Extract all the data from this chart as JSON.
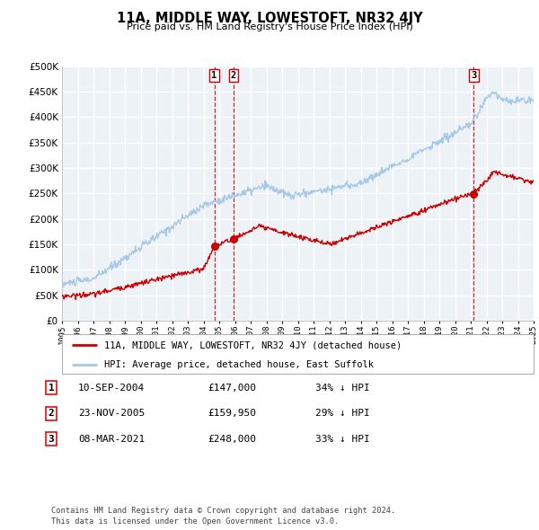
{
  "title": "11A, MIDDLE WAY, LOWESTOFT, NR32 4JY",
  "subtitle": "Price paid vs. HM Land Registry's House Price Index (HPI)",
  "legend_red": "11A, MIDDLE WAY, LOWESTOFT, NR32 4JY (detached house)",
  "legend_blue": "HPI: Average price, detached house, East Suffolk",
  "footer": "Contains HM Land Registry data © Crown copyright and database right 2024.\nThis data is licensed under the Open Government Licence v3.0.",
  "transactions": [
    {
      "num": 1,
      "date": "10-SEP-2004",
      "price": "£147,000",
      "hpi": "34% ↓ HPI",
      "year": 2004.69
    },
    {
      "num": 2,
      "date": "23-NOV-2005",
      "price": "£159,950",
      "hpi": "29% ↓ HPI",
      "year": 2005.9
    },
    {
      "num": 3,
      "date": "08-MAR-2021",
      "price": "£248,000",
      "hpi": "33% ↓ HPI",
      "year": 2021.19
    }
  ],
  "transaction_prices": [
    147000,
    159950,
    248000
  ],
  "ylim": [
    0,
    500000
  ],
  "yticks": [
    0,
    50000,
    100000,
    150000,
    200000,
    250000,
    300000,
    350000,
    400000,
    450000,
    500000
  ],
  "xlim_start": 1995,
  "xlim_end": 2025,
  "red_color": "#cc0000",
  "blue_color": "#a8c8e8",
  "vline_color": "#cc0000",
  "plot_bg": "#edf2f7",
  "grid_color": "#ffffff"
}
